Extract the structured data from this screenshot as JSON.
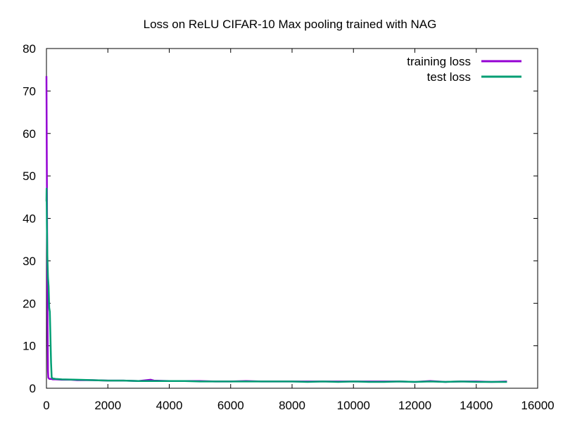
{
  "chart_data": {
    "type": "line",
    "title": "Loss on ReLU CIFAR-10 Max pooling trained with NAG",
    "xlabel": "",
    "ylabel": "",
    "xlim": [
      0,
      16000
    ],
    "ylim": [
      0,
      80
    ],
    "x_ticks": [
      0,
      2000,
      4000,
      6000,
      8000,
      10000,
      12000,
      14000,
      16000
    ],
    "y_ticks": [
      0,
      10,
      20,
      30,
      40,
      50,
      60,
      70,
      80
    ],
    "grid": false,
    "legend_position": "top-right",
    "series": [
      {
        "name": "training loss",
        "color": "#9400d3",
        "x": [
          0,
          10,
          20,
          30,
          40,
          50,
          60,
          80,
          100,
          150,
          200,
          300,
          500,
          800,
          1000,
          1500,
          2000,
          2500,
          3000,
          3400,
          3500,
          4000,
          4500,
          5000,
          5500,
          6000,
          6500,
          7000,
          7500,
          8000,
          8500,
          9000,
          9500,
          10000,
          10500,
          11000,
          11500,
          12000,
          12500,
          13000,
          13500,
          14000,
          14500,
          15000
        ],
        "values": [
          73.5,
          56,
          40,
          25,
          12,
          4,
          2.5,
          2.3,
          2.2,
          2.2,
          2.1,
          2.1,
          2.0,
          2.0,
          1.9,
          1.9,
          1.8,
          1.8,
          1.7,
          2.0,
          1.8,
          1.7,
          1.7,
          1.7,
          1.6,
          1.6,
          1.7,
          1.6,
          1.6,
          1.6,
          1.6,
          1.6,
          1.6,
          1.6,
          1.6,
          1.6,
          1.6,
          1.5,
          1.7,
          1.5,
          1.6,
          1.6,
          1.5,
          1.6
        ]
      },
      {
        "name": "test loss",
        "color": "#009e73",
        "x": [
          0,
          5,
          15,
          30,
          50,
          70,
          90,
          110,
          130,
          150,
          170,
          200,
          300,
          500,
          1000,
          1500,
          2000,
          2500,
          3000,
          3500,
          4000,
          4500,
          5000,
          5500,
          6000,
          6500,
          7000,
          7500,
          8000,
          8500,
          9000,
          9500,
          10000,
          10500,
          11000,
          11500,
          12000,
          12500,
          13000,
          13500,
          14000,
          14500,
          15000
        ],
        "values": [
          44,
          47,
          38,
          31,
          26,
          24,
          19,
          18,
          12,
          6,
          2.6,
          2.3,
          2.2,
          2.1,
          2.0,
          1.9,
          1.8,
          1.8,
          1.7,
          1.7,
          1.7,
          1.7,
          1.6,
          1.6,
          1.6,
          1.6,
          1.6,
          1.6,
          1.6,
          1.5,
          1.6,
          1.5,
          1.6,
          1.5,
          1.5,
          1.6,
          1.5,
          1.6,
          1.5,
          1.6,
          1.5,
          1.5,
          1.5
        ]
      }
    ]
  }
}
